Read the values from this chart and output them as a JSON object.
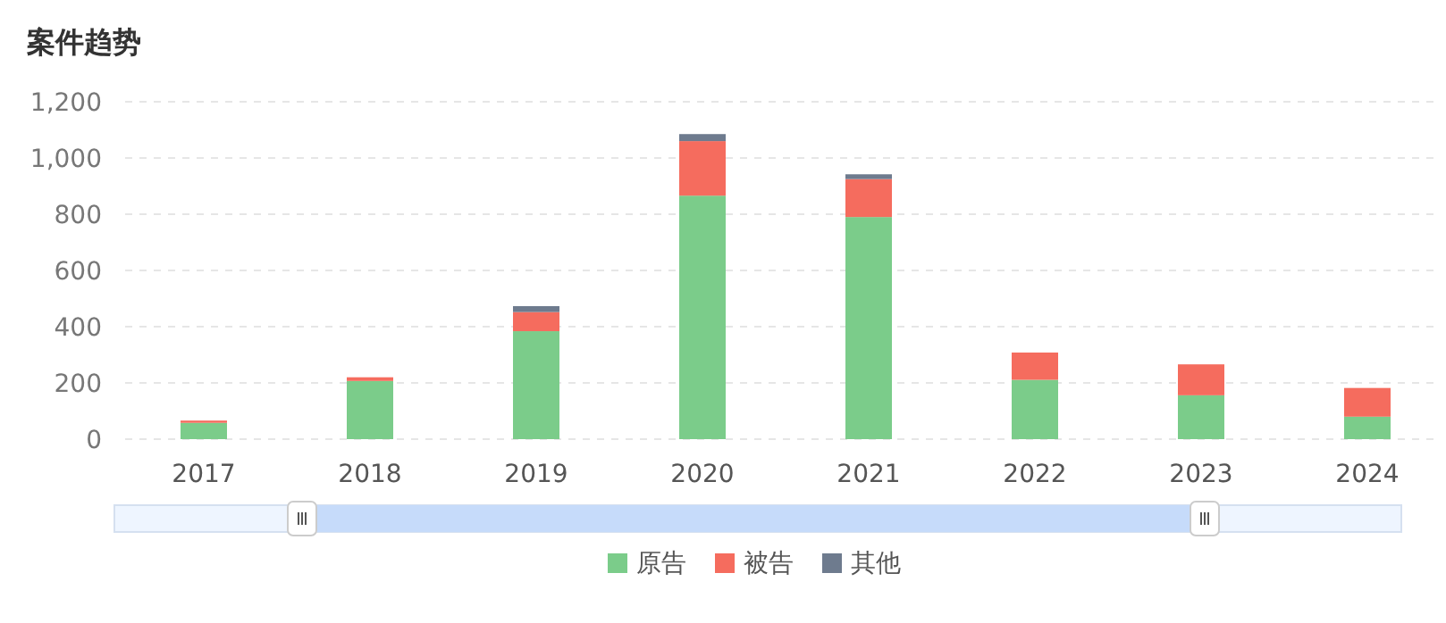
{
  "chart_data": {
    "type": "bar",
    "title": "案件趋势",
    "stacked": true,
    "categories": [
      "2017",
      "2018",
      "2019",
      "2020",
      "2021",
      "2022",
      "2023",
      "2024"
    ],
    "series": [
      {
        "name": "原告",
        "color": "#7bcc8a",
        "values": [
          58,
          207,
          384,
          866,
          790,
          211,
          156,
          80
        ]
      },
      {
        "name": "被告",
        "color": "#f56c5e",
        "values": [
          8,
          13,
          68,
          194,
          135,
          97,
          110,
          102
        ]
      },
      {
        "name": "其他",
        "color": "#6e7b8e",
        "values": [
          null,
          null,
          21,
          25,
          17,
          null,
          null,
          null
        ]
      }
    ],
    "ylim": [
      0,
      1200
    ],
    "yticks": [
      {
        "value": 0,
        "label": "0"
      },
      {
        "value": 200,
        "label": "200"
      },
      {
        "value": 400,
        "label": "400"
      },
      {
        "value": 600,
        "label": "600"
      },
      {
        "value": 800,
        "label": "800"
      },
      {
        "value": 1000,
        "label": "1,000"
      },
      {
        "value": 1200,
        "label": "1,200"
      }
    ],
    "grid": "y",
    "legend": "bottom"
  }
}
